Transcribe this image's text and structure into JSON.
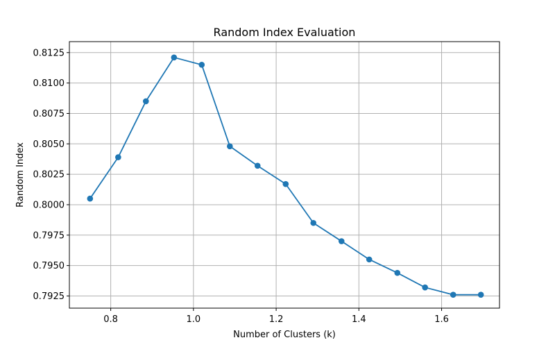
{
  "chart_data": {
    "type": "line",
    "title": "Random Index Evaluation",
    "xlabel": "Number of Clusters (k)",
    "ylabel": "Random Index",
    "xlim": [
      0.7,
      1.74
    ],
    "ylim": [
      0.7915,
      0.8134
    ],
    "x_ticks": [
      0.8,
      1.0,
      1.2,
      1.4,
      1.6
    ],
    "x_tick_labels": [
      "0.8",
      "1.0",
      "1.2",
      "1.4",
      "1.6"
    ],
    "y_ticks": [
      0.7925,
      0.795,
      0.7975,
      0.8,
      0.8025,
      0.805,
      0.8075,
      0.81,
      0.8125
    ],
    "y_tick_labels": [
      "0.7925",
      "0.7950",
      "0.7975",
      "0.8000",
      "0.8025",
      "0.8050",
      "0.8075",
      "0.8100",
      "0.8125"
    ],
    "grid": true,
    "series": [
      {
        "color": "#1f77b4",
        "marker": "circle",
        "x": [
          0.75,
          0.818,
          0.885,
          0.953,
          1.02,
          1.088,
          1.155,
          1.223,
          1.29,
          1.358,
          1.425,
          1.493,
          1.56,
          1.628,
          1.695
        ],
        "y": [
          0.8005,
          0.8039,
          0.8085,
          0.8121,
          0.8115,
          0.8048,
          0.8032,
          0.8017,
          0.7985,
          0.797,
          0.7955,
          0.7944,
          0.7932,
          0.7926,
          0.7926
        ]
      }
    ]
  }
}
